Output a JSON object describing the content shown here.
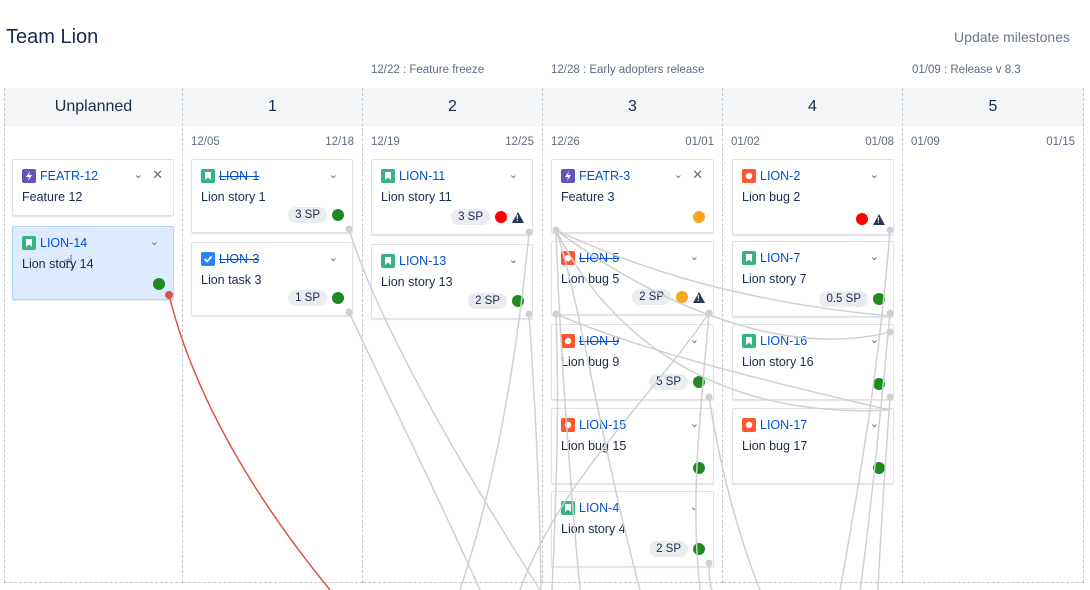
{
  "header": {
    "title": "Team Lion",
    "update_label": "Update milestones"
  },
  "milestones": [
    {
      "label": "12/22 : Feature freeze"
    },
    {
      "label": "12/28 : Early adopters release"
    },
    {
      "label": "01/09 : Release v 8.3"
    }
  ],
  "columns": [
    {
      "title": "Unplanned",
      "start": "",
      "end": ""
    },
    {
      "title": "1",
      "start": "12/05",
      "end": "12/18"
    },
    {
      "title": "2",
      "start": "12/19",
      "end": "12/25"
    },
    {
      "title": "3",
      "start": "12/26",
      "end": "01/01"
    },
    {
      "title": "4",
      "start": "01/02",
      "end": "01/08"
    },
    {
      "title": "5",
      "start": "01/09",
      "end": "01/15"
    }
  ],
  "colors": {
    "green": "#1f8a1f",
    "red": "#ff0000",
    "yellow": "#f5a623",
    "story": "#36b37e",
    "bug": "#ff5630",
    "feature": "#6554c0",
    "task": "#2684ff",
    "link_line": "#d0d0d0",
    "active_link": "#d9534f"
  },
  "cards": [
    {
      "key": "FEATR-12",
      "summary": "Feature 12",
      "type": "feature",
      "done": false,
      "sp": "",
      "status": "",
      "warn": false,
      "closable": true
    },
    {
      "key": "LION-14",
      "summary": "Lion story 14",
      "type": "story",
      "done": false,
      "sp": "",
      "status": "green",
      "warn": false,
      "closable": false
    },
    {
      "key": "LION-1",
      "summary": "Lion story 1",
      "type": "story",
      "done": true,
      "sp": "3 SP",
      "status": "green",
      "warn": false,
      "closable": false
    },
    {
      "key": "LION-3",
      "summary": "Lion task 3",
      "type": "task",
      "done": true,
      "sp": "1 SP",
      "status": "green",
      "warn": false,
      "closable": false
    },
    {
      "key": "LION-11",
      "summary": "Lion story 11",
      "type": "story",
      "done": false,
      "sp": "3 SP",
      "status": "red",
      "warn": true,
      "closable": false
    },
    {
      "key": "LION-13",
      "summary": "Lion story 13",
      "type": "story",
      "done": false,
      "sp": "2 SP",
      "status": "green",
      "warn": false,
      "closable": false
    },
    {
      "key": "FEATR-3",
      "summary": "Feature 3",
      "type": "feature",
      "done": false,
      "sp": "",
      "status": "yellow",
      "warn": false,
      "closable": true
    },
    {
      "key": "LION-5",
      "summary": "Lion bug 5",
      "type": "bug",
      "done": true,
      "sp": "2 SP",
      "status": "yellow",
      "warn": true,
      "closable": false
    },
    {
      "key": "LION-9",
      "summary": "Lion bug 9",
      "type": "bug",
      "done": true,
      "sp": "5 SP",
      "status": "green",
      "warn": false,
      "closable": false
    },
    {
      "key": "LION-15",
      "summary": "Lion bug 15",
      "type": "bug",
      "done": false,
      "sp": "",
      "status": "green",
      "warn": false,
      "closable": false
    },
    {
      "key": "LION-4",
      "summary": "Lion story 4",
      "type": "story",
      "done": false,
      "sp": "2 SP",
      "status": "green",
      "warn": false,
      "closable": false
    },
    {
      "key": "LION-2",
      "summary": "Lion bug 2",
      "type": "bug",
      "done": false,
      "sp": "",
      "status": "red",
      "warn": true,
      "closable": false
    },
    {
      "key": "LION-7",
      "summary": "Lion story 7",
      "type": "story",
      "done": false,
      "sp": "0.5 SP",
      "status": "green",
      "warn": false,
      "closable": false
    },
    {
      "key": "LION-16",
      "summary": "Lion story 16",
      "type": "story",
      "done": false,
      "sp": "",
      "status": "green",
      "warn": false,
      "closable": false
    },
    {
      "key": "LION-17",
      "summary": "Lion bug 17",
      "type": "bug",
      "done": false,
      "sp": "",
      "status": "green",
      "warn": false,
      "closable": false
    }
  ]
}
